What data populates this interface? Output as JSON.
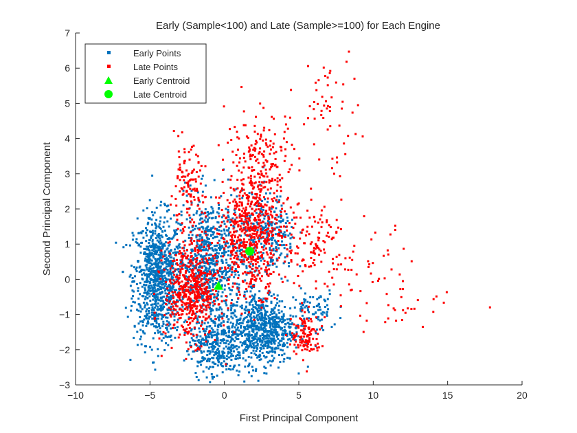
{
  "chart_data": {
    "type": "scatter",
    "title": "Early (Sample<100) and Late (Sample>=100) for Each Engine",
    "xlabel": "First Principal Component",
    "ylabel": "Second Principal Component",
    "xlim": [
      -10,
      20
    ],
    "ylim": [
      -3,
      7
    ],
    "xticks": [
      -10,
      -5,
      0,
      5,
      10,
      15,
      20
    ],
    "yticks": [
      -3,
      -2,
      -1,
      0,
      1,
      2,
      3,
      4,
      5,
      6,
      7
    ],
    "xtick_labels": [
      "−10",
      "−5",
      "0",
      "5",
      "10",
      "15",
      "20"
    ],
    "ytick_labels": [
      "−3",
      "−2",
      "−1",
      "0",
      "1",
      "2",
      "3",
      "4",
      "5",
      "6",
      "7"
    ],
    "grid": false,
    "legend_position": "top-left",
    "series": [
      {
        "name": "Early Points",
        "color": "#0072BD",
        "marker": "square-point",
        "clusters": [
          {
            "cx": -4.5,
            "cy": 0.0,
            "sx": 0.8,
            "sy": 0.9,
            "n": 900
          },
          {
            "cx": -1.0,
            "cy": 0.5,
            "sx": 1.1,
            "sy": 0.9,
            "n": 700
          },
          {
            "cx": 2.5,
            "cy": -1.4,
            "sx": 1.1,
            "sy": 0.5,
            "n": 700
          },
          {
            "cx": -0.5,
            "cy": -1.8,
            "sx": 0.9,
            "sy": 0.5,
            "n": 350
          },
          {
            "cx": 3.0,
            "cy": 1.2,
            "sx": 0.9,
            "sy": 0.6,
            "n": 250
          },
          {
            "cx": 6.0,
            "cy": -0.9,
            "sx": 0.8,
            "sy": 0.3,
            "n": 80
          }
        ]
      },
      {
        "name": "Late Points",
        "color": "#FF0000",
        "marker": "square-point",
        "clusters": [
          {
            "cx": -2.2,
            "cy": -0.3,
            "sx": 0.9,
            "sy": 0.7,
            "n": 550
          },
          {
            "cx": 1.8,
            "cy": 1.2,
            "sx": 1.0,
            "sy": 0.8,
            "n": 550
          },
          {
            "cx": -2.5,
            "cy": 2.5,
            "sx": 0.6,
            "sy": 0.6,
            "n": 120
          },
          {
            "cx": 2.5,
            "cy": 3.2,
            "sx": 1.2,
            "sy": 0.8,
            "n": 220
          },
          {
            "cx": 5.5,
            "cy": -1.6,
            "sx": 0.5,
            "sy": 0.3,
            "n": 120
          },
          {
            "cx": 6.0,
            "cy": 1.0,
            "sx": 1.0,
            "sy": 0.6,
            "n": 120
          },
          {
            "cx": 9.5,
            "cy": 0.3,
            "sx": 1.5,
            "sy": 0.6,
            "n": 45
          },
          {
            "cx": 12.5,
            "cy": -0.9,
            "sx": 1.5,
            "sy": 0.3,
            "n": 25
          },
          {
            "cx": 7.0,
            "cy": 4.8,
            "sx": 1.0,
            "sy": 0.9,
            "n": 55
          }
        ]
      },
      {
        "name": "Early Centroid",
        "color": "#00FF00",
        "marker": "triangle",
        "points": [
          {
            "x": -0.4,
            "y": -0.2
          }
        ]
      },
      {
        "name": "Late Centroid",
        "color": "#00FF00",
        "marker": "circle",
        "points": [
          {
            "x": 1.7,
            "y": 0.8
          }
        ]
      }
    ]
  }
}
